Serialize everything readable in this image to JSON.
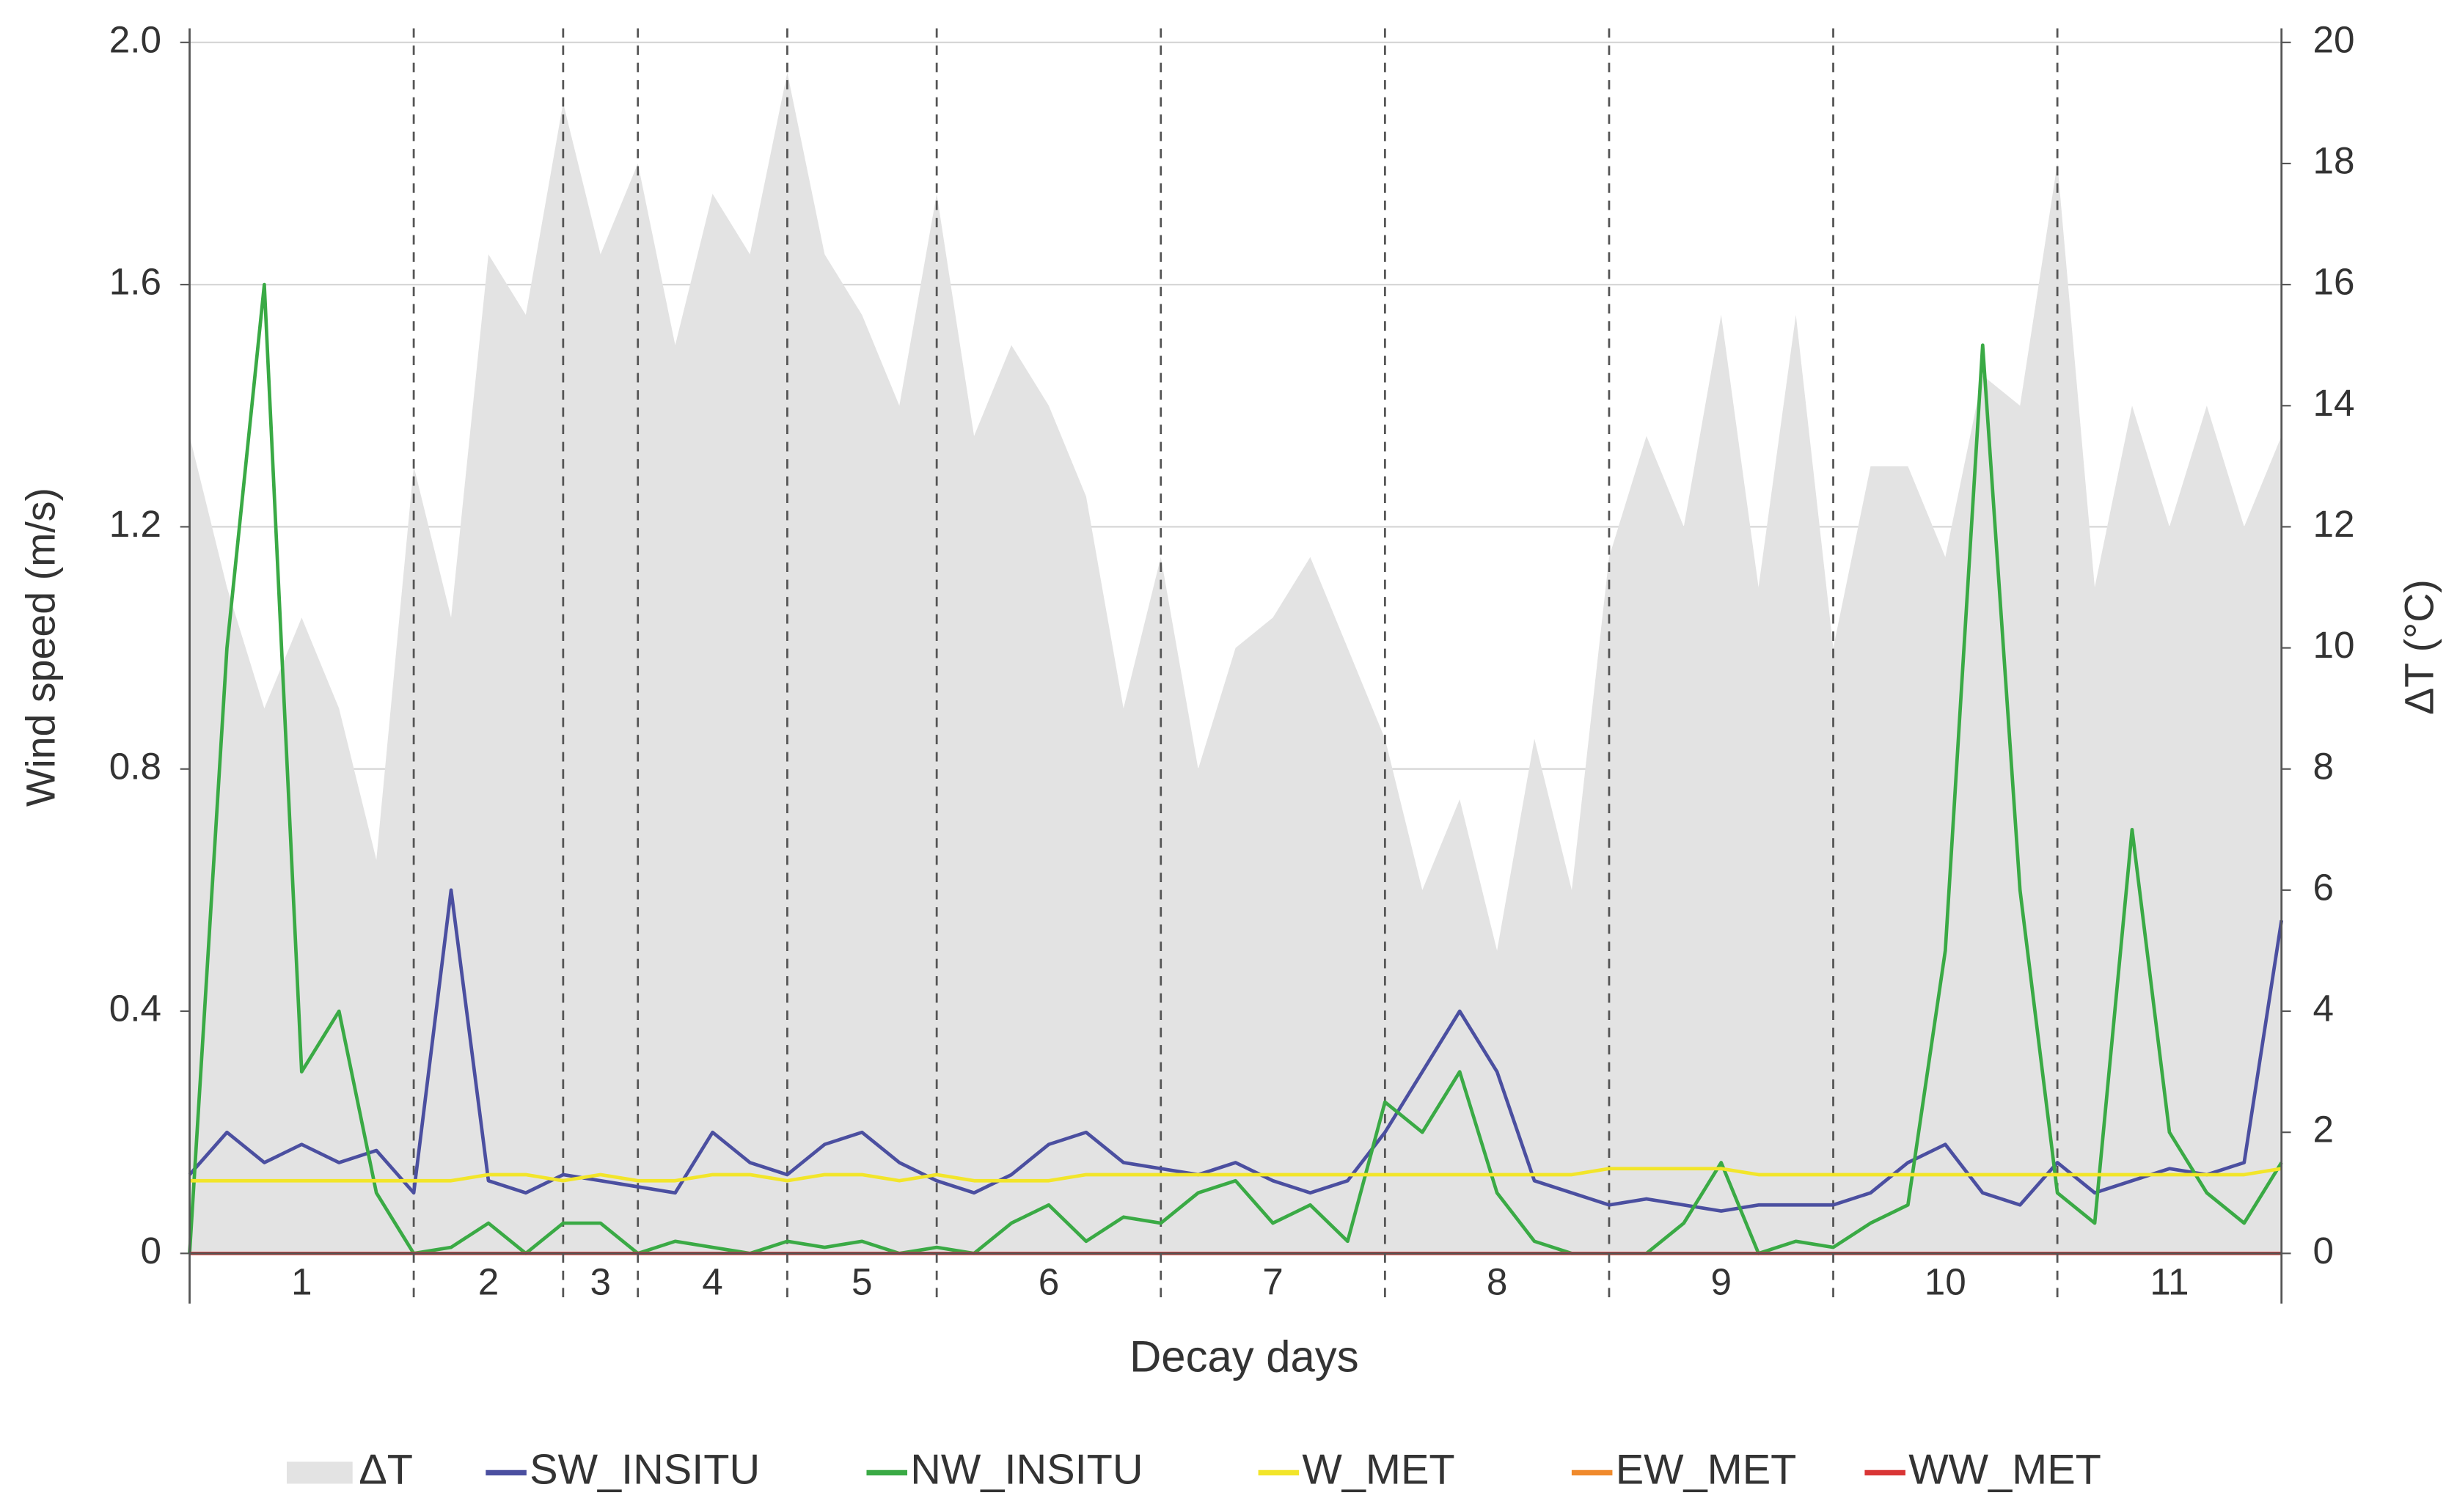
{
  "chart_data": {
    "type": "line",
    "x_label": "Decay days",
    "y_label": "Wind speed (m/s)",
    "y2_label": "ΔT (°C)",
    "categories": [
      "1",
      "2",
      "3",
      "4",
      "5",
      "6",
      "7",
      "8",
      "9",
      "10",
      "11"
    ],
    "day_boundaries": [
      24,
      40,
      48,
      64,
      80,
      104,
      128,
      152,
      176,
      200
    ],
    "xlim": [
      0,
      224
    ],
    "ylim": [
      0,
      2
    ],
    "yticks": [
      0,
      0.4,
      0.8,
      1.2,
      1.6,
      {
        "value": 2,
        "label": "2.0"
      }
    ],
    "y2lim": [
      0,
      20
    ],
    "y2ticks": [
      0,
      2,
      4,
      6,
      8,
      10,
      12,
      14,
      16,
      18,
      20
    ],
    "grid": true,
    "legend": "bottom",
    "x": [
      0,
      4,
      8,
      12,
      16,
      20,
      24,
      28,
      32,
      36,
      40,
      44,
      48,
      52,
      56,
      60,
      64,
      68,
      72,
      76,
      80,
      84,
      88,
      92,
      96,
      100,
      104,
      108,
      112,
      116,
      120,
      124,
      128,
      132,
      136,
      140,
      144,
      148,
      152,
      156,
      160,
      164,
      168,
      172,
      176,
      180,
      184,
      188,
      192,
      196,
      200,
      204,
      208,
      212,
      216,
      220,
      224
    ],
    "series": [
      {
        "name": "ΔT",
        "kind": "area",
        "axis": "y2",
        "color": "#e3e3e3",
        "values": [
          13.5,
          11,
          9,
          10.5,
          9,
          6.5,
          13,
          10.5,
          16.5,
          15.5,
          19,
          16.5,
          18,
          15,
          17.5,
          16.5,
          19.5,
          16.5,
          15.5,
          14,
          17.5,
          13.5,
          15,
          14,
          12.5,
          9,
          11.5,
          8,
          10,
          10.5,
          11.5,
          10,
          8.5,
          6,
          7.5,
          5,
          8.5,
          6,
          11.5,
          13.5,
          12,
          15.5,
          11,
          15.5,
          10,
          13,
          13,
          11.5,
          14.5,
          14,
          18,
          11,
          14,
          12,
          14,
          12,
          13.5
        ]
      },
      {
        "name": "SW_INSITU",
        "kind": "line",
        "color": "#4b4fa0",
        "values": [
          0.13,
          0.2,
          0.15,
          0.18,
          0.15,
          0.17,
          0.1,
          0.6,
          0.12,
          0.1,
          0.13,
          0.12,
          0.11,
          0.1,
          0.2,
          0.15,
          0.13,
          0.18,
          0.2,
          0.15,
          0.12,
          0.1,
          0.13,
          0.18,
          0.2,
          0.15,
          0.14,
          0.13,
          0.15,
          0.12,
          0.1,
          0.12,
          0.2,
          0.3,
          0.4,
          0.3,
          0.12,
          0.1,
          0.08,
          0.09,
          0.08,
          0.07,
          0.08,
          0.08,
          0.08,
          0.1,
          0.15,
          0.18,
          0.1,
          0.08,
          0.15,
          0.1,
          0.12,
          0.14,
          0.13,
          0.15,
          0.55
        ]
      },
      {
        "name": "NW_INSITU",
        "kind": "line",
        "color": "#3aaa45",
        "values": [
          0,
          1,
          1.6,
          0.3,
          0.4,
          0.1,
          0,
          0.01,
          0.05,
          0,
          0.05,
          0.05,
          0,
          0.02,
          0.01,
          0,
          0.02,
          0.01,
          0.02,
          0,
          0.01,
          0,
          0.05,
          0.08,
          0.02,
          0.06,
          0.05,
          0.1,
          0.12,
          0.05,
          0.08,
          0.02,
          0.25,
          0.2,
          0.3,
          0.1,
          0.02,
          0,
          0,
          0,
          0.05,
          0.15,
          0,
          0.02,
          0.01,
          0.05,
          0.08,
          0.5,
          1.5,
          0.6,
          0.1,
          0.05,
          0.7,
          0.2,
          0.1,
          0.05,
          0.15
        ]
      },
      {
        "name": "W_MET",
        "kind": "line",
        "color": "#f2e52a",
        "values": [
          0.12,
          0.12,
          0.12,
          0.12,
          0.12,
          0.12,
          0.12,
          0.12,
          0.13,
          0.13,
          0.12,
          0.13,
          0.12,
          0.12,
          0.13,
          0.13,
          0.12,
          0.13,
          0.13,
          0.12,
          0.13,
          0.12,
          0.12,
          0.12,
          0.13,
          0.13,
          0.13,
          0.13,
          0.13,
          0.13,
          0.13,
          0.13,
          0.13,
          0.13,
          0.13,
          0.13,
          0.13,
          0.13,
          0.14,
          0.14,
          0.14,
          0.14,
          0.13,
          0.13,
          0.13,
          0.13,
          0.13,
          0.13,
          0.13,
          0.13,
          0.13,
          0.13,
          0.13,
          0.13,
          0.13,
          0.13,
          0.14
        ]
      },
      {
        "name": "EW_MET",
        "kind": "line",
        "color": "#f08a2c",
        "values": [
          0,
          0,
          0,
          0,
          0,
          0,
          0,
          0,
          0,
          0,
          0,
          0,
          0,
          0,
          0,
          0,
          0,
          0,
          0,
          0,
          0,
          0,
          0,
          0,
          0,
          0,
          0,
          0,
          0,
          0,
          0,
          0,
          0,
          0,
          0,
          0,
          0,
          0,
          0,
          0,
          0,
          0,
          0,
          0,
          0,
          0,
          0,
          0,
          0,
          0,
          0,
          0,
          0,
          0,
          0,
          0,
          0
        ]
      },
      {
        "name": "WW_MET",
        "kind": "line",
        "color": "#d93636",
        "values": [
          0,
          0,
          0,
          0,
          0,
          0,
          0,
          0,
          0,
          0,
          0,
          0,
          0,
          0,
          0,
          0,
          0,
          0,
          0,
          0,
          0,
          0,
          0,
          0,
          0,
          0,
          0,
          0,
          0,
          0,
          0,
          0,
          0,
          0,
          0,
          0,
          0,
          0,
          0,
          0,
          0,
          0,
          0,
          0,
          0,
          0,
          0,
          0,
          0,
          0,
          0,
          0,
          0,
          0,
          0,
          0,
          0
        ]
      }
    ]
  }
}
